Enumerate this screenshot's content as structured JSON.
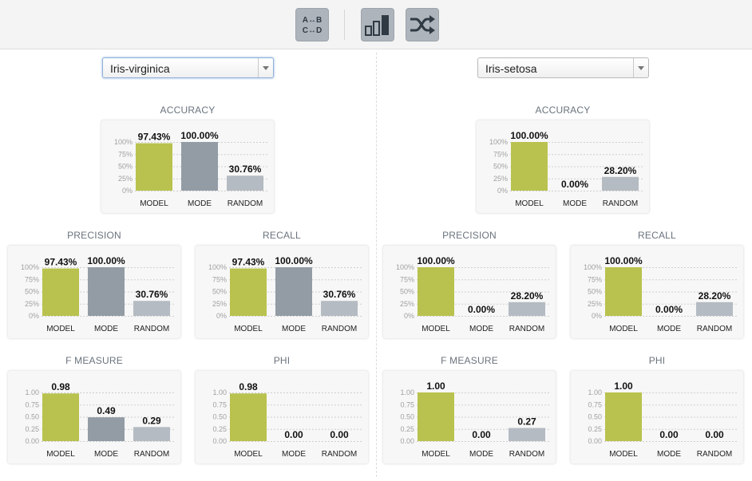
{
  "toolbar": {
    "buttons": [
      {
        "name": "swap-classes-button",
        "icon": "swap-classes-icon",
        "glyph_lines": [
          "A↔B",
          "C↔D"
        ]
      },
      {
        "name": "bar-chart-button",
        "icon": "bar-chart-icon"
      },
      {
        "name": "shuffle-button",
        "icon": "shuffle-icon"
      }
    ]
  },
  "colors": {
    "model": "#b9c24e",
    "mode": "#939ca5",
    "random": "#b5bbc2",
    "grid": "#cfcfcf",
    "tick": "#a0a0a0"
  },
  "panels": [
    {
      "selected_class": "Iris-virginica",
      "charts": [
        {
          "key": "accuracy",
          "title": "ACCURACY",
          "type": "bar",
          "scale": "percent",
          "categories": [
            "MODEL",
            "MODE",
            "RANDOM"
          ],
          "values": [
            97.43,
            100.0,
            30.76
          ],
          "labels": [
            "97.43%",
            "100.00%",
            "30.76%"
          ],
          "ylim": [
            0,
            100
          ],
          "ticks": [
            "100%",
            "75%",
            "50%",
            "25%",
            "0%"
          ]
        },
        {
          "key": "precision",
          "title": "PRECISION",
          "type": "bar",
          "scale": "percent",
          "categories": [
            "MODEL",
            "MODE",
            "RANDOM"
          ],
          "values": [
            97.43,
            100.0,
            30.76
          ],
          "labels": [
            "97.43%",
            "100.00%",
            "30.76%"
          ],
          "ylim": [
            0,
            100
          ],
          "ticks": [
            "100%",
            "75%",
            "50%",
            "25%",
            "0%"
          ]
        },
        {
          "key": "recall",
          "title": "RECALL",
          "type": "bar",
          "scale": "percent",
          "categories": [
            "MODEL",
            "MODE",
            "RANDOM"
          ],
          "values": [
            97.43,
            100.0,
            30.76
          ],
          "labels": [
            "97.43%",
            "100.00%",
            "30.76%"
          ],
          "ylim": [
            0,
            100
          ],
          "ticks": [
            "100%",
            "75%",
            "50%",
            "25%",
            "0%"
          ]
        },
        {
          "key": "f_measure",
          "title": "F MEASURE",
          "type": "bar",
          "scale": "unit",
          "categories": [
            "MODEL",
            "MODE",
            "RANDOM"
          ],
          "values": [
            0.98,
            0.49,
            0.29
          ],
          "labels": [
            "0.98",
            "0.49",
            "0.29"
          ],
          "ylim": [
            0,
            1
          ],
          "ticks": [
            "1.00",
            "0.75",
            "0.50",
            "0.25",
            "0.00"
          ]
        },
        {
          "key": "phi",
          "title": "PHI",
          "type": "bar",
          "scale": "unit",
          "categories": [
            "MODEL",
            "MODE",
            "RANDOM"
          ],
          "values": [
            0.98,
            0.0,
            0.0
          ],
          "labels": [
            "0.98",
            "0.00",
            "0.00"
          ],
          "ylim": [
            0,
            1
          ],
          "ticks": [
            "1.00",
            "0.75",
            "0.50",
            "0.25",
            "0.00"
          ]
        }
      ]
    },
    {
      "selected_class": "Iris-setosa",
      "charts": [
        {
          "key": "accuracy",
          "title": "ACCURACY",
          "type": "bar",
          "scale": "percent",
          "categories": [
            "MODEL",
            "MODE",
            "RANDOM"
          ],
          "values": [
            100.0,
            0.0,
            28.2
          ],
          "labels": [
            "100.00%",
            "0.00%",
            "28.20%"
          ],
          "ylim": [
            0,
            100
          ],
          "ticks": [
            "100%",
            "75%",
            "50%",
            "25%",
            "0%"
          ]
        },
        {
          "key": "precision",
          "title": "PRECISION",
          "type": "bar",
          "scale": "percent",
          "categories": [
            "MODEL",
            "MODE",
            "RANDOM"
          ],
          "values": [
            100.0,
            0.0,
            28.2
          ],
          "labels": [
            "100.00%",
            "0.00%",
            "28.20%"
          ],
          "ylim": [
            0,
            100
          ],
          "ticks": [
            "100%",
            "75%",
            "50%",
            "25%",
            "0%"
          ]
        },
        {
          "key": "recall",
          "title": "RECALL",
          "type": "bar",
          "scale": "percent",
          "categories": [
            "MODEL",
            "MODE",
            "RANDOM"
          ],
          "values": [
            100.0,
            0.0,
            28.2
          ],
          "labels": [
            "100.00%",
            "0.00%",
            "28.20%"
          ],
          "ylim": [
            0,
            100
          ],
          "ticks": [
            "100%",
            "75%",
            "50%",
            "25%",
            "0%"
          ]
        },
        {
          "key": "f_measure",
          "title": "F MEASURE",
          "type": "bar",
          "scale": "unit",
          "categories": [
            "MODEL",
            "MODE",
            "RANDOM"
          ],
          "values": [
            1.0,
            0.0,
            0.27
          ],
          "labels": [
            "1.00",
            "0.00",
            "0.27"
          ],
          "ylim": [
            0,
            1
          ],
          "ticks": [
            "1.00",
            "0.75",
            "0.50",
            "0.25",
            "0.00"
          ]
        },
        {
          "key": "phi",
          "title": "PHI",
          "type": "bar",
          "scale": "unit",
          "categories": [
            "MODEL",
            "MODE",
            "RANDOM"
          ],
          "values": [
            1.0,
            0.0,
            0.0
          ],
          "labels": [
            "1.00",
            "0.00",
            "0.00"
          ],
          "ylim": [
            0,
            1
          ],
          "ticks": [
            "1.00",
            "0.75",
            "0.50",
            "0.25",
            "0.00"
          ]
        }
      ]
    }
  ],
  "chart_data": [
    {
      "panel": "Iris-virginica",
      "type": "bar",
      "title": "ACCURACY",
      "categories": [
        "MODEL",
        "MODE",
        "RANDOM"
      ],
      "values": [
        97.43,
        100.0,
        30.76
      ],
      "ylim": [
        0,
        100
      ]
    },
    {
      "panel": "Iris-virginica",
      "type": "bar",
      "title": "PRECISION",
      "categories": [
        "MODEL",
        "MODE",
        "RANDOM"
      ],
      "values": [
        97.43,
        100.0,
        30.76
      ],
      "ylim": [
        0,
        100
      ]
    },
    {
      "panel": "Iris-virginica",
      "type": "bar",
      "title": "RECALL",
      "categories": [
        "MODEL",
        "MODE",
        "RANDOM"
      ],
      "values": [
        97.43,
        100.0,
        30.76
      ],
      "ylim": [
        0,
        100
      ]
    },
    {
      "panel": "Iris-virginica",
      "type": "bar",
      "title": "F MEASURE",
      "categories": [
        "MODEL",
        "MODE",
        "RANDOM"
      ],
      "values": [
        0.98,
        0.49,
        0.29
      ],
      "ylim": [
        0,
        1
      ]
    },
    {
      "panel": "Iris-virginica",
      "type": "bar",
      "title": "PHI",
      "categories": [
        "MODEL",
        "MODE",
        "RANDOM"
      ],
      "values": [
        0.98,
        0.0,
        0.0
      ],
      "ylim": [
        0,
        1
      ]
    },
    {
      "panel": "Iris-setosa",
      "type": "bar",
      "title": "ACCURACY",
      "categories": [
        "MODEL",
        "MODE",
        "RANDOM"
      ],
      "values": [
        100.0,
        0.0,
        28.2
      ],
      "ylim": [
        0,
        100
      ]
    },
    {
      "panel": "Iris-setosa",
      "type": "bar",
      "title": "PRECISION",
      "categories": [
        "MODEL",
        "MODE",
        "RANDOM"
      ],
      "values": [
        100.0,
        0.0,
        28.2
      ],
      "ylim": [
        0,
        100
      ]
    },
    {
      "panel": "Iris-setosa",
      "type": "bar",
      "title": "RECALL",
      "categories": [
        "MODEL",
        "MODE",
        "RANDOM"
      ],
      "values": [
        100.0,
        0.0,
        28.2
      ],
      "ylim": [
        0,
        100
      ]
    },
    {
      "panel": "Iris-setosa",
      "type": "bar",
      "title": "F MEASURE",
      "categories": [
        "MODEL",
        "MODE",
        "RANDOM"
      ],
      "values": [
        1.0,
        0.0,
        0.27
      ],
      "ylim": [
        0,
        1
      ]
    },
    {
      "panel": "Iris-setosa",
      "type": "bar",
      "title": "PHI",
      "categories": [
        "MODEL",
        "MODE",
        "RANDOM"
      ],
      "values": [
        1.0,
        0.0,
        0.0
      ],
      "ylim": [
        0,
        1
      ]
    }
  ]
}
